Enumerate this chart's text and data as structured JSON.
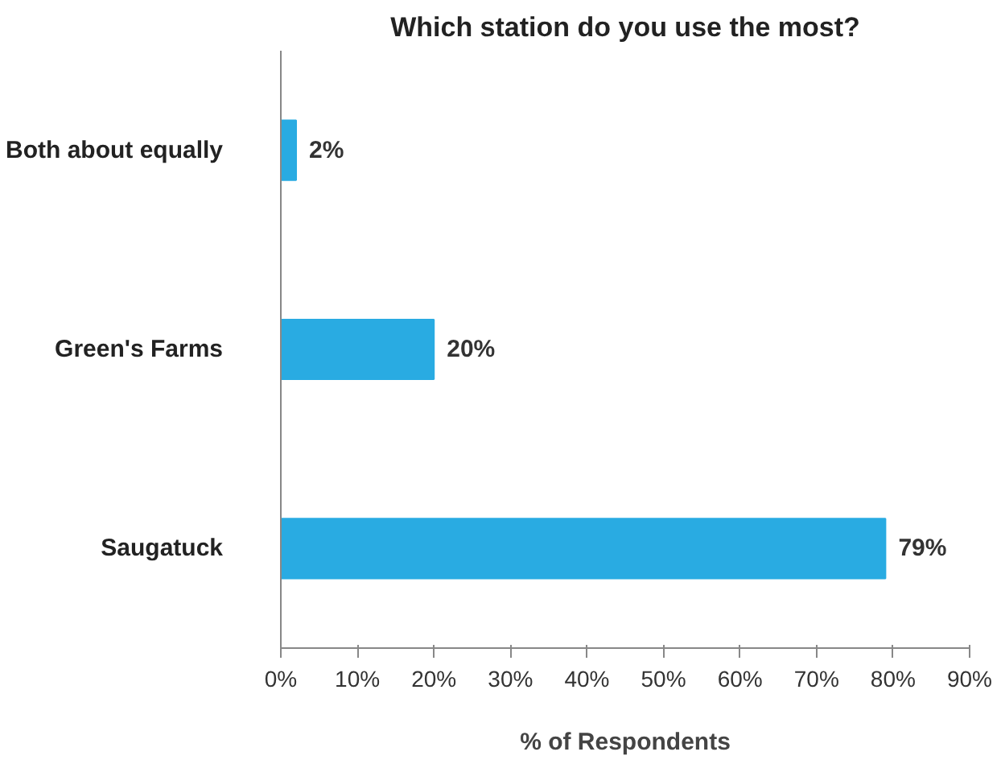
{
  "chart_data": {
    "type": "bar",
    "orientation": "horizontal",
    "title": "Which station do you use the most?",
    "xlabel": "% of Respondents",
    "categories": [
      "Both about equally",
      "Green's Farms",
      "Saugatuck"
    ],
    "values": [
      2,
      20,
      79
    ],
    "value_labels": [
      "2%",
      "20%",
      "79%"
    ],
    "color": "#29abe2",
    "xlim": [
      0,
      90
    ],
    "xticks": [
      {
        "value": 0,
        "label": "0%"
      },
      {
        "value": 10,
        "label": "10%"
      },
      {
        "value": 20,
        "label": "20%"
      },
      {
        "value": 30,
        "label": "30%"
      },
      {
        "value": 40,
        "label": "40%"
      },
      {
        "value": 50,
        "label": "50%"
      },
      {
        "value": 60,
        "label": "60%"
      },
      {
        "value": 70,
        "label": "70%"
      },
      {
        "value": 80,
        "label": "80%"
      },
      {
        "value": 90,
        "label": "90%"
      }
    ],
    "grid": false
  }
}
